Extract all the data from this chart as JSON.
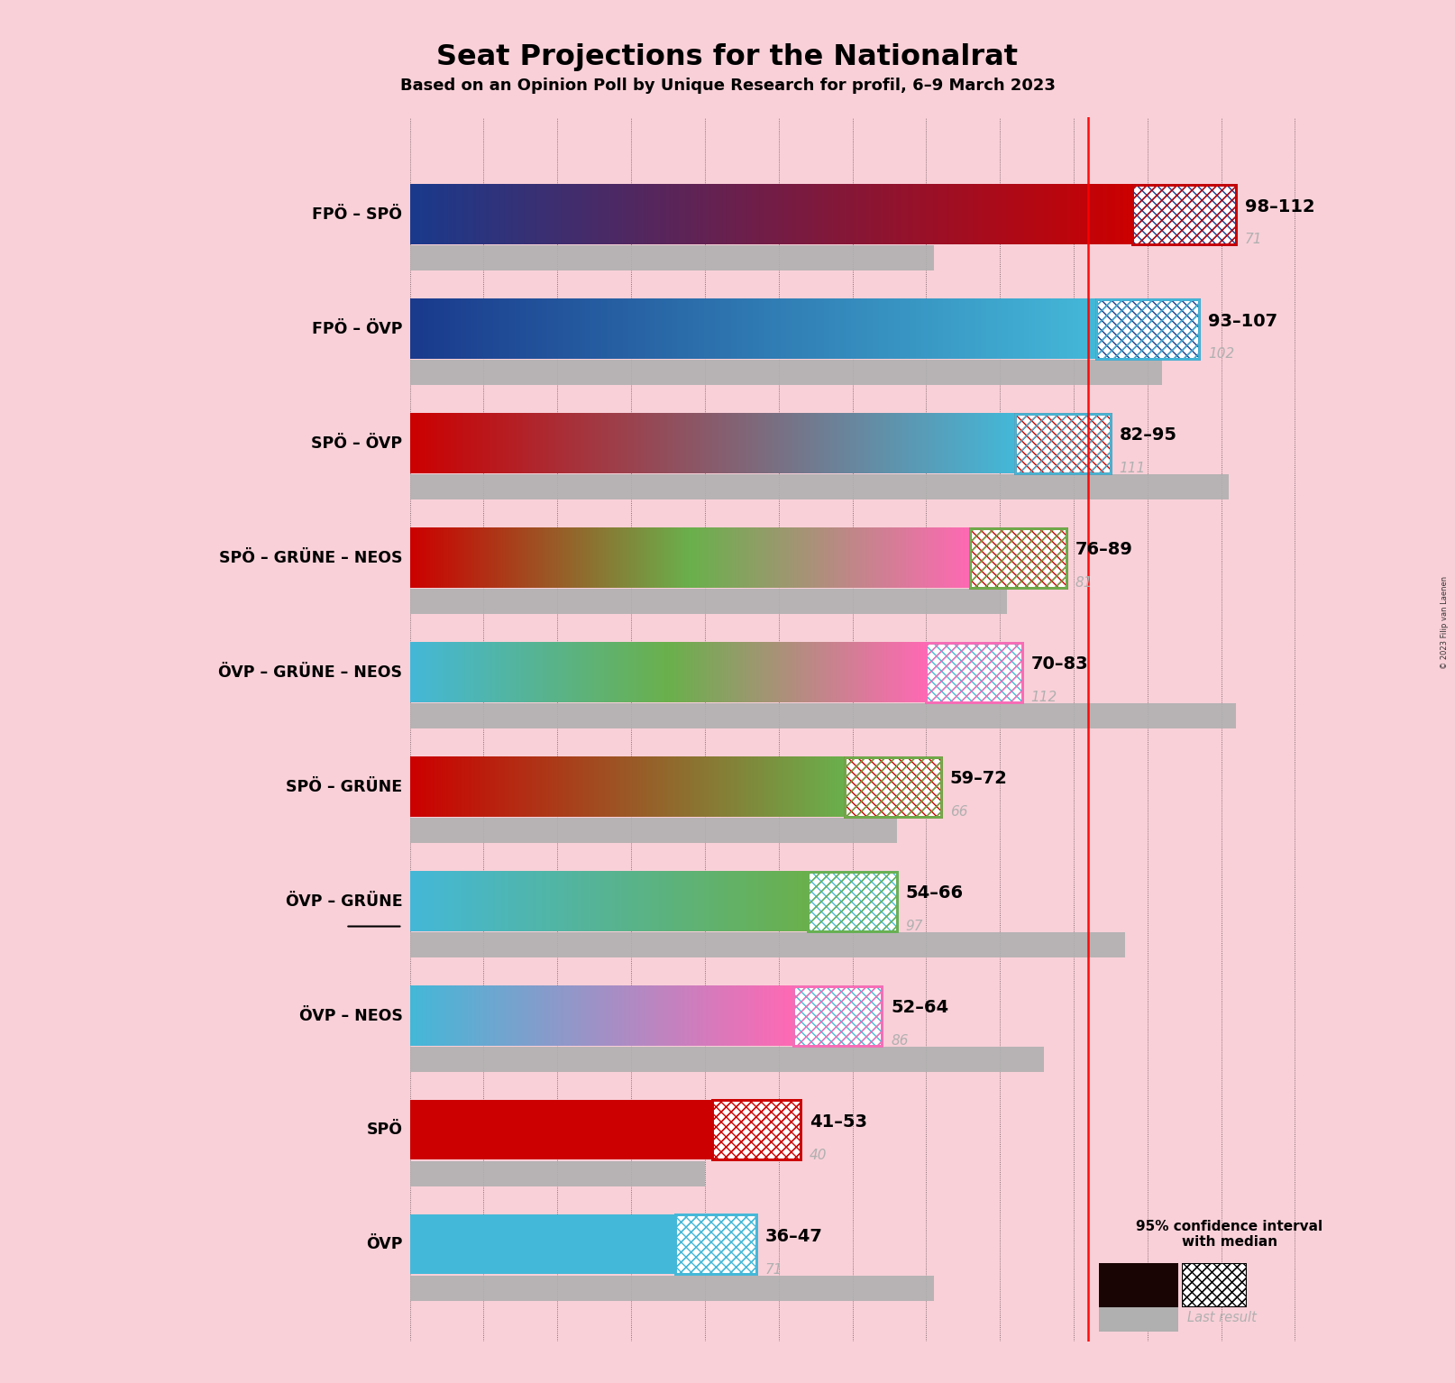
{
  "title": "Seat Projections for the Nationalrat",
  "subtitle": "Based on an Opinion Poll by Unique Research for profil, 6–9 March 2023",
  "background_color": "#f9d0d8",
  "coalitions": [
    {
      "label": "FPÖ – SPÖ",
      "min": 98,
      "max": 112,
      "last_result": 71,
      "colors": [
        "#1a3a8c",
        "#cc0000"
      ],
      "underline": false
    },
    {
      "label": "FPÖ – ÖVP",
      "min": 93,
      "max": 107,
      "last_result": 102,
      "colors": [
        "#1a3a8c",
        "#44b8d8"
      ],
      "underline": false
    },
    {
      "label": "SPÖ – ÖVP",
      "min": 82,
      "max": 95,
      "last_result": 111,
      "colors": [
        "#cc0000",
        "#44b8d8"
      ],
      "underline": false
    },
    {
      "label": "SPÖ – GRÜNE – NEOS",
      "min": 76,
      "max": 89,
      "last_result": 81,
      "colors": [
        "#cc0000",
        "#6ab04c",
        "#ff69b4"
      ],
      "underline": false
    },
    {
      "label": "ÖVP – GRÜNE – NEOS",
      "min": 70,
      "max": 83,
      "last_result": 112,
      "colors": [
        "#44b8d8",
        "#6ab04c",
        "#ff69b4"
      ],
      "underline": false
    },
    {
      "label": "SPÖ – GRÜNE",
      "min": 59,
      "max": 72,
      "last_result": 66,
      "colors": [
        "#cc0000",
        "#6ab04c"
      ],
      "underline": false
    },
    {
      "label": "ÖVP – GRÜNE",
      "min": 54,
      "max": 66,
      "last_result": 97,
      "colors": [
        "#44b8d8",
        "#6ab04c"
      ],
      "underline": true
    },
    {
      "label": "ÖVP – NEOS",
      "min": 52,
      "max": 64,
      "last_result": 86,
      "colors": [
        "#44b8d8",
        "#ff69b4"
      ],
      "underline": false
    },
    {
      "label": "SPÖ",
      "min": 41,
      "max": 53,
      "last_result": 40,
      "colors": [
        "#cc0000"
      ],
      "underline": false
    },
    {
      "label": "ÖVP",
      "min": 36,
      "max": 47,
      "last_result": 71,
      "colors": [
        "#44b8d8"
      ],
      "underline": false
    }
  ],
  "xlim": [
    0,
    130
  ],
  "majority_line": 92,
  "bar_height": 0.52,
  "gray_bar_height": 0.22,
  "gray_color": "#b0b0b0",
  "hatch_colors": {
    "FPÖ – SPÖ": [
      "#1a3a8c",
      "#cc0000"
    ],
    "FPÖ – ÖVP": [
      "#1a3a8c",
      "#44b8d8"
    ],
    "SPÖ – ÖVP": [
      "#cc0000",
      "#44b8d8"
    ],
    "SPÖ – GRÜNE – NEOS": [
      "#cc0000",
      "#6ab04c"
    ],
    "ÖVP – GRÜNE – NEOS": [
      "#44b8d8",
      "#ff69b4"
    ],
    "SPÖ – GRÜNE": [
      "#cc0000",
      "#6ab04c"
    ],
    "ÖVP – GRÜNE": [
      "#44b8d8",
      "#6ab04c"
    ],
    "ÖVP – NEOS": [
      "#44b8d8",
      "#ff69b4"
    ],
    "SPÖ": [
      "#cc0000",
      "#cc0000"
    ],
    "ÖVP": [
      "#44b8d8",
      "#44b8d8"
    ]
  },
  "grid_x": [
    0,
    10,
    20,
    30,
    40,
    50,
    60,
    70,
    80,
    90,
    100,
    110,
    120,
    130
  ],
  "copyright": "© 2023 Filip van Laenen"
}
